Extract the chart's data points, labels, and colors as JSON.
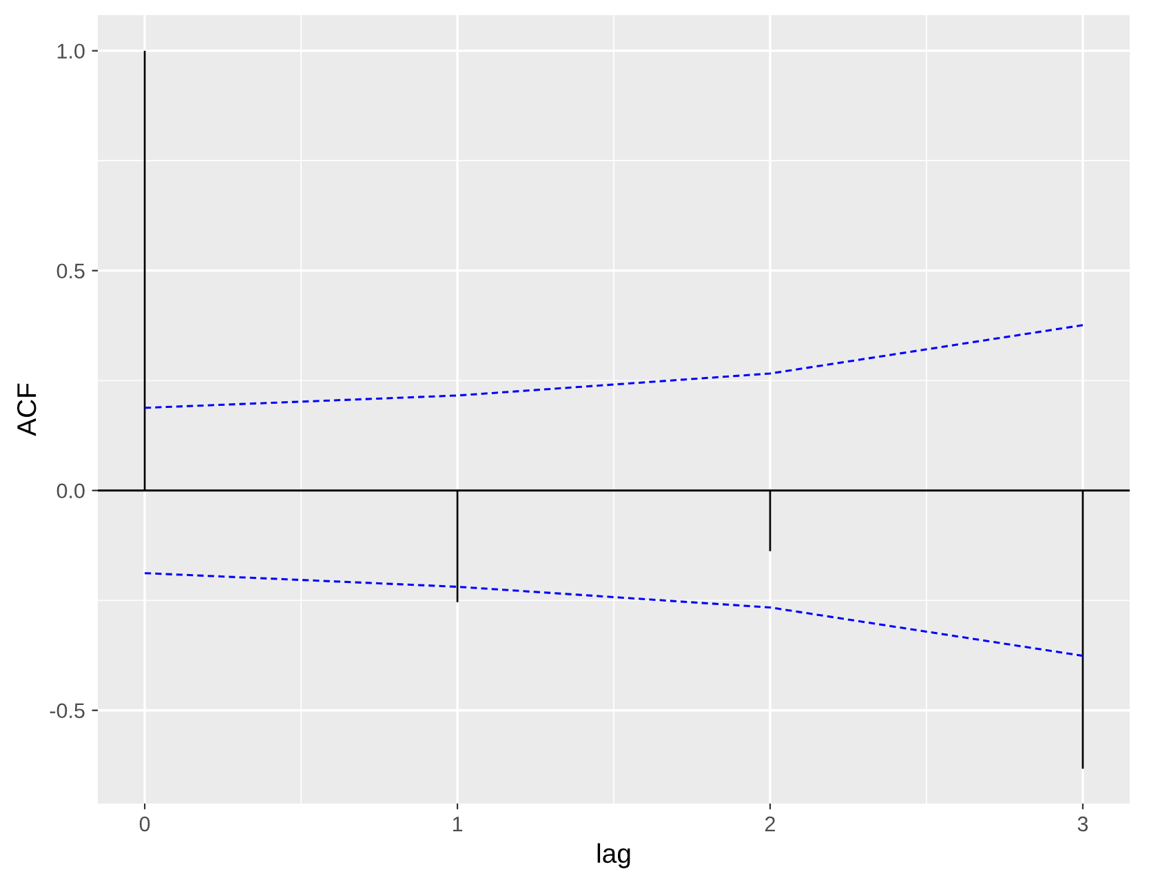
{
  "chart_data": {
    "type": "bar",
    "xlabel": "lag",
    "ylabel": "ACF",
    "x": [
      0,
      1,
      2,
      3
    ],
    "series": [
      {
        "color": "#000000",
        "values": [
          1.0,
          -0.254,
          -0.138,
          -0.633
        ]
      },
      {
        "type": "line",
        "color": "#0000ff",
        "values": [
          0.188,
          0.216,
          0.266,
          0.376
        ],
        "line_style": "dashed"
      },
      {
        "type": "line",
        "color": "#0000ff",
        "values": [
          -0.188,
          -0.219,
          -0.266,
          -0.376
        ],
        "line_style": "dashed"
      }
    ],
    "ref_lines": [
      {
        "axis": "y",
        "value": 0,
        "color": "#000000"
      }
    ],
    "xlim": [
      -0.15,
      3.15
    ],
    "ylim": [
      -0.712,
      1.081
    ],
    "xticks": [
      0,
      1,
      2,
      3
    ],
    "yticks": [
      {
        "value": -0.5,
        "label": "-0.5"
      },
      {
        "value": 0,
        "label": "0.0"
      },
      {
        "value": 0.5,
        "label": "0.5"
      },
      {
        "value": 1,
        "label": "1.0"
      }
    ],
    "grid": true
  }
}
